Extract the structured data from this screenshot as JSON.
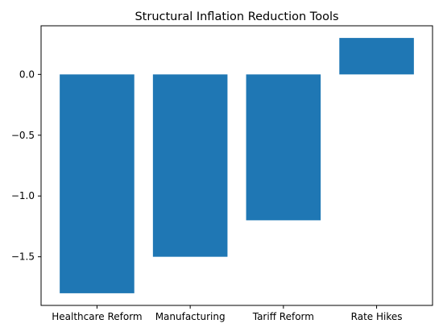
{
  "chart_data": {
    "type": "bar",
    "title": "Structural Inflation Reduction Tools",
    "xlabel": "",
    "ylabel": "",
    "categories": [
      "Healthcare Reform",
      "Manufacturing",
      "Tariff Reform",
      "Rate Hikes"
    ],
    "values": [
      -1.8,
      -1.5,
      -1.2,
      0.3
    ],
    "ylim": [
      -1.9,
      0.4
    ],
    "yticks": [
      0.0,
      -0.5,
      -1.0,
      -1.5
    ],
    "ytick_labels": [
      "0.0",
      "−0.5",
      "−1.0",
      "−1.5"
    ],
    "grid": false,
    "legend": "none",
    "bar_color": "#1f77b4",
    "axis_color": "#000000"
  }
}
